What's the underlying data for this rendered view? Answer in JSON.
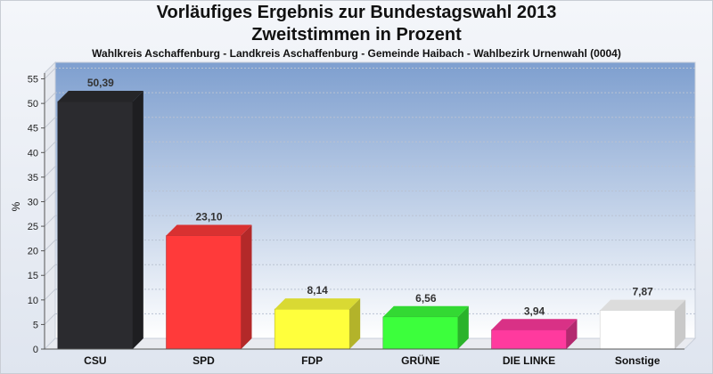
{
  "chart_data": {
    "type": "bar",
    "title": "Vorläufiges Ergebnis zur Bundestagswahl 2013",
    "subtitle_1": "Zweitstimmen in Prozent",
    "subtitle_2": "Wahlkreis Aschaffenburg - Landkreis Aschaffenburg - Gemeinde Haibach - Wahlbezirk Urnenwahl (0004)",
    "ylabel": "%",
    "ylim": [
      0,
      58
    ],
    "yticks": [
      0,
      5,
      10,
      15,
      20,
      25,
      30,
      35,
      40,
      45,
      50,
      55
    ],
    "categories": [
      "CSU",
      "SPD",
      "FDP",
      "GRÜNE",
      "DIE LINKE",
      "Sonstige"
    ],
    "values": [
      50.39,
      23.1,
      8.14,
      6.56,
      3.94,
      7.87
    ],
    "value_labels": [
      "50,39",
      "23,10",
      "8,14",
      "6,56",
      "3,94",
      "7,87"
    ],
    "colors": [
      "#2b2b2f",
      "#ff3a3a",
      "#ffff3c",
      "#3cff3c",
      "#ff3a9e",
      "#ffffff"
    ],
    "grid": true,
    "legend": "none"
  }
}
